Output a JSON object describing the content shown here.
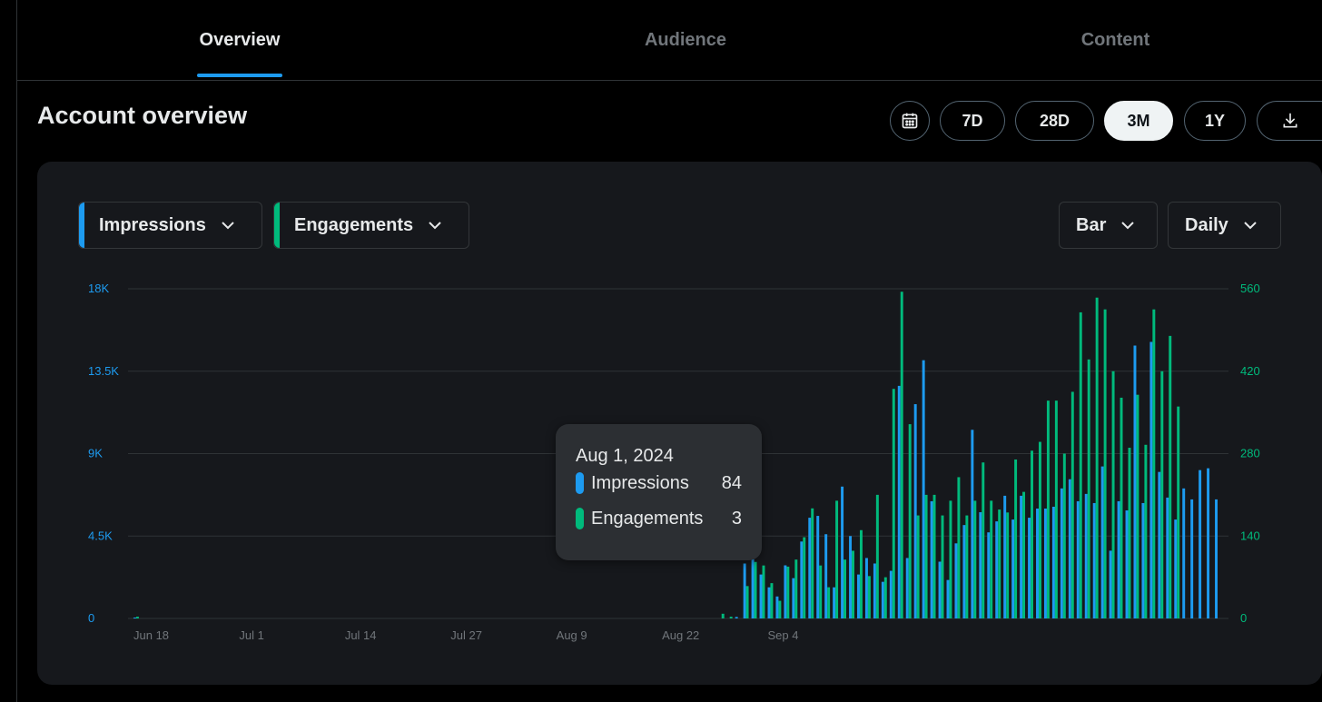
{
  "tabs": [
    {
      "label": "Overview",
      "active": true
    },
    {
      "label": "Audience",
      "active": false
    },
    {
      "label": "Content",
      "active": false
    }
  ],
  "page_title": "Account overview",
  "range_buttons": [
    {
      "label": "",
      "icon": "calendar-icon"
    },
    {
      "label": "7D"
    },
    {
      "label": "28D"
    },
    {
      "label": "3M",
      "selected": true
    },
    {
      "label": "1Y"
    },
    {
      "label": "",
      "icon": "download-icon"
    }
  ],
  "metric_dropdowns": [
    {
      "label": "Impressions",
      "color": "#1d9bf0"
    },
    {
      "label": "Engagements",
      "color": "#00ba7c"
    }
  ],
  "chart_type_dropdown": {
    "label": "Bar"
  },
  "interval_dropdown": {
    "label": "Daily"
  },
  "tooltip": {
    "date": "Aug 1, 2024",
    "rows": [
      {
        "label": "Impressions",
        "value": "84",
        "color": "#1d9bf0"
      },
      {
        "label": "Engagements",
        "value": "3",
        "color": "#00ba7c"
      }
    ]
  },
  "chart_data": {
    "type": "bar",
    "x_tick_labels": [
      "Jun 18",
      "Jul 1",
      "Jul 14",
      "Jul 27",
      "Aug 9",
      "Aug 22",
      "Sep 4"
    ],
    "x_start": "Jun 18",
    "y_left": {
      "ticks": [
        "0",
        "4.5K",
        "9K",
        "13.5K",
        "18K"
      ],
      "range": [
        0,
        18000
      ],
      "color": "#1d9bf0"
    },
    "y_right": {
      "ticks": [
        "0",
        "140",
        "280",
        "420",
        "560"
      ],
      "range": [
        0,
        560
      ],
      "color": "#00ba7c"
    },
    "grid": true,
    "series": [
      {
        "name": "Impressions",
        "axis": "left",
        "color": "#1d9bf0",
        "values": [
          30,
          0,
          0,
          0,
          0,
          0,
          0,
          0,
          0,
          0,
          0,
          0,
          0,
          0,
          0,
          0,
          0,
          0,
          0,
          0,
          0,
          0,
          0,
          0,
          0,
          0,
          0,
          0,
          0,
          0,
          0,
          0,
          0,
          0,
          0,
          0,
          0,
          0,
          0,
          0,
          0,
          0,
          0,
          0,
          0,
          0,
          0,
          0,
          0,
          0,
          0,
          0,
          0,
          0,
          0,
          0,
          0,
          0,
          0,
          0,
          0,
          0,
          0,
          0,
          0,
          0,
          0,
          0,
          0,
          0,
          0,
          0,
          0,
          0,
          84,
          3000,
          3300,
          2400,
          1700,
          1200,
          2900,
          2200,
          4200,
          5500,
          5600,
          4600,
          1700,
          7200,
          4500,
          2400,
          3300,
          3000,
          2000,
          2600,
          12700,
          3300,
          11700,
          14100,
          6400,
          3100,
          2100,
          4100,
          5100,
          10300,
          5800,
          4700,
          5300,
          6700,
          5400,
          6700,
          5500,
          6000,
          6000,
          6100,
          7100,
          7600,
          6400,
          6800,
          6300,
          8300,
          3700,
          6400,
          5900,
          14900,
          6300,
          15100,
          8000,
          6600,
          5400,
          7100,
          6500,
          8100,
          8200,
          6500
        ]
      },
      {
        "name": "Engagements",
        "axis": "right",
        "color": "#00ba7c",
        "values": [
          3,
          0,
          0,
          0,
          0,
          0,
          0,
          0,
          0,
          0,
          0,
          0,
          0,
          0,
          0,
          0,
          0,
          0,
          0,
          0,
          0,
          0,
          0,
          0,
          0,
          0,
          0,
          0,
          0,
          0,
          0,
          0,
          0,
          0,
          0,
          0,
          0,
          0,
          0,
          0,
          0,
          0,
          0,
          0,
          0,
          0,
          0,
          0,
          0,
          0,
          0,
          0,
          0,
          0,
          0,
          0,
          0,
          0,
          0,
          0,
          0,
          0,
          0,
          0,
          0,
          0,
          0,
          0,
          0,
          0,
          0,
          0,
          8,
          3,
          0,
          55,
          96,
          90,
          60,
          30,
          88,
          100,
          138,
          187,
          90,
          53,
          200,
          100,
          115,
          150,
          72,
          210,
          70,
          390,
          555,
          330,
          175,
          210,
          210,
          175,
          200,
          240,
          175,
          200,
          265,
          200,
          185,
          180,
          270,
          215,
          285,
          300,
          370,
          370,
          280,
          385,
          520,
          440,
          545,
          525,
          420,
          375,
          290,
          380,
          295,
          525,
          420,
          480,
          360
        ]
      }
    ]
  }
}
